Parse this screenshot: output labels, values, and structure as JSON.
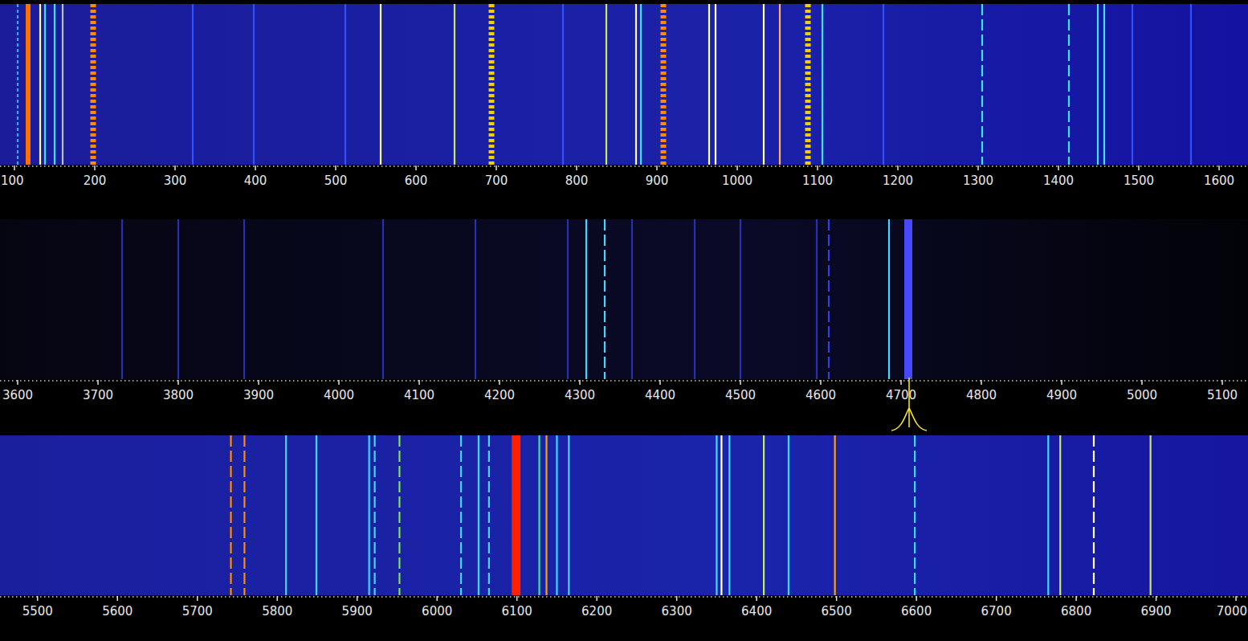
{
  "chart_data": [
    {
      "type": "waterfall",
      "tick_labels": "x",
      "xlim": [
        82,
        1636
      ],
      "xticks": [
        100,
        200,
        300,
        400,
        500,
        600,
        700,
        800,
        900,
        1000,
        1100,
        1200,
        1300,
        1400,
        1500,
        1600
      ],
      "series": [
        {
          "color": "#40a0ff",
          "line_style": "dotted",
          "x": [
            104
          ]
        },
        {
          "color": "#ff7000",
          "line_style": "solid",
          "x": [
            117
          ],
          "bandwidth": [
            6
          ]
        },
        {
          "color": "#ffff90",
          "line_style": "solid",
          "x": [
            132,
            556,
            965,
            1033
          ]
        },
        {
          "color": "#40e0ff",
          "line_style": "solid",
          "x": [
            138,
            150,
            880,
            1106,
            1449,
            1457
          ]
        },
        {
          "color": "#c0c0c0",
          "line_style": "solid",
          "x": [
            160
          ]
        },
        {
          "color": "#ff8c00",
          "line_style": "dotted",
          "x": [
            198,
            908
          ],
          "bandwidth": [
            7,
            7
          ]
        },
        {
          "color": "#f0d000",
          "line_style": "dotted",
          "x": [
            694,
            1088
          ],
          "bandwidth": [
            7,
            7
          ]
        },
        {
          "color": "#c8e860",
          "line_style": "solid",
          "x": [
            648,
            837
          ]
        },
        {
          "color": "#ffffff",
          "line_style": "solid",
          "x": [
            874,
            973
          ]
        },
        {
          "color": "#ffb060",
          "line_style": "solid",
          "x": [
            1053
          ]
        },
        {
          "color": "#40e0ff",
          "line_style": "dashed",
          "x": [
            1305,
            1413
          ]
        },
        {
          "color": "#3050ff",
          "line_style": "solid",
          "x": [
            322,
            398,
            512,
            783,
            1182,
            1492,
            1565
          ]
        }
      ]
    },
    {
      "type": "waterfall",
      "tick_labels": "x",
      "xlim": [
        3578,
        5132
      ],
      "xticks": [
        3600,
        3700,
        3800,
        3900,
        4000,
        4100,
        4200,
        4300,
        4400,
        4500,
        4600,
        4700,
        4800,
        4900,
        5000,
        5100
      ],
      "cursor": 4710,
      "series": [
        {
          "color": "#40d8ff",
          "line_style": "solid",
          "x": [
            4308,
            4685
          ]
        },
        {
          "color": "#40d8ff",
          "line_style": "dashed",
          "x": [
            4331
          ]
        },
        {
          "color": "#4848ff",
          "line_style": "solid",
          "x": [
            4709
          ],
          "bandwidth": [
            10
          ]
        },
        {
          "color": "#3040e0",
          "line_style": "dashed",
          "x": [
            4610
          ]
        },
        {
          "color": "#2830b0",
          "line_style": "solid",
          "x": [
            3730,
            3800,
            3882,
            4055,
            4170,
            4285,
            4365,
            4443,
            4500,
            4595
          ]
        }
      ]
    },
    {
      "type": "waterfall",
      "tick_labels": "x",
      "xlim": [
        5453,
        7015
      ],
      "xticks": [
        5500,
        5600,
        5700,
        5800,
        5900,
        6000,
        6100,
        6200,
        6300,
        6400,
        6500,
        6600,
        6700,
        6800,
        6900,
        7000
      ],
      "series": [
        {
          "color": "#ff8c00",
          "line_style": "dashed",
          "x": [
            5742,
            5759
          ]
        },
        {
          "color": "#40d8ff",
          "line_style": "solid",
          "x": [
            5811,
            5849,
            5915,
            6052,
            6150,
            6165,
            6350,
            6366,
            6440,
            6765
          ]
        },
        {
          "color": "#40d8ff",
          "line_style": "dashed",
          "x": [
            5922,
            6030,
            6065,
            6598
          ]
        },
        {
          "color": "#80e060",
          "line_style": "dashed",
          "x": [
            5953
          ]
        },
        {
          "color": "#ff2000",
          "line_style": "solid",
          "x": [
            6099
          ],
          "bandwidth": [
            11
          ]
        },
        {
          "color": "#ffa000",
          "line_style": "solid",
          "x": [
            6137,
            6498
          ]
        },
        {
          "color": "#40e0a0",
          "line_style": "solid",
          "x": [
            6128
          ]
        },
        {
          "color": "#ffffff",
          "line_style": "solid",
          "x": [
            6356
          ]
        },
        {
          "color": "#c8e860",
          "line_style": "solid",
          "x": [
            6409,
            6780,
            6893
          ]
        },
        {
          "color": "#ffffff",
          "line_style": "dashed",
          "x": [
            6822
          ]
        }
      ]
    }
  ]
}
